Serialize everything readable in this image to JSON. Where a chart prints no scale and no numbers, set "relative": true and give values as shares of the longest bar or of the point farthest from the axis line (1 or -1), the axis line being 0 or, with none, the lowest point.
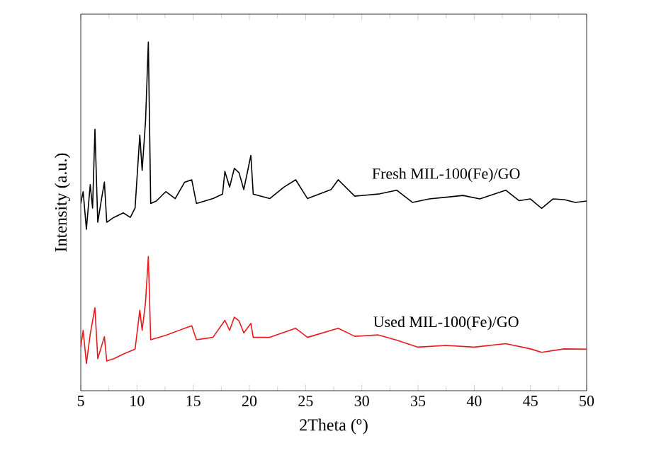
{
  "chart_data": {
    "type": "line",
    "relative": true,
    "xlabel": "2Theta ($^{o}$)",
    "ylabel": "Intensity (a.u.)",
    "xlim": [
      5,
      50
    ],
    "xticks": [
      5,
      10,
      15,
      20,
      25,
      30,
      35,
      40,
      45,
      50
    ],
    "grid": false,
    "legend": false,
    "marker": "none",
    "line_style": "solid",
    "series": [
      {
        "name": "Fresh MIL-100(Fe)/GO",
        "color": "#000000",
        "x": [
          5.0,
          5.21,
          5.5,
          5.84,
          6.05,
          6.26,
          6.51,
          6.85,
          7.1,
          7.31,
          7.94,
          8.78,
          9.41,
          9.83,
          10.25,
          10.46,
          10.76,
          11.01,
          11.22,
          11.72,
          12.56,
          13.4,
          14.24,
          14.87,
          15.29,
          16.76,
          17.61,
          17.82,
          18.24,
          18.66,
          19.08,
          19.5,
          20.13,
          20.34,
          21.81,
          23.07,
          24.12,
          25.17,
          27.27,
          27.9,
          29.37,
          31.47,
          33.1,
          34.5,
          36,
          37.5,
          39,
          40.5,
          42.8,
          44,
          45,
          46,
          47,
          48,
          49,
          50
        ],
        "values": [
          0.537,
          0.571,
          0.463,
          0.591,
          0.524,
          0.75,
          0.483,
          0.551,
          0.598,
          0.483,
          0.497,
          0.51,
          0.497,
          0.524,
          0.733,
          0.632,
          0.773,
          1.0,
          0.537,
          0.544,
          0.571,
          0.551,
          0.598,
          0.605,
          0.537,
          0.551,
          0.564,
          0.629,
          0.584,
          0.638,
          0.625,
          0.577,
          0.675,
          0.564,
          0.551,
          0.584,
          0.605,
          0.551,
          0.577,
          0.605,
          0.558,
          0.564,
          0.575,
          0.54,
          0.55,
          0.555,
          0.56,
          0.55,
          0.575,
          0.545,
          0.55,
          0.523,
          0.55,
          0.548,
          0.54,
          0.544
        ]
      },
      {
        "name": "Used MIL-100(Fe)/GO",
        "color": "#e8191d",
        "x": [
          5.0,
          5.21,
          5.5,
          5.84,
          6.26,
          6.51,
          7.1,
          7.31,
          7.94,
          8.78,
          9.83,
          10.25,
          10.46,
          10.76,
          11.01,
          11.22,
          12.56,
          14.24,
          14.87,
          15.29,
          16.76,
          17.82,
          18.24,
          18.66,
          19.08,
          19.5,
          20.13,
          20.34,
          21.81,
          24.12,
          25.17,
          27.9,
          29.37,
          31.47,
          33.1,
          35,
          37.5,
          40,
          42.8,
          45,
          46,
          48,
          50
        ],
        "values": [
          0.126,
          0.173,
          0.078,
          0.162,
          0.238,
          0.092,
          0.155,
          0.085,
          0.092,
          0.105,
          0.119,
          0.231,
          0.173,
          0.254,
          0.385,
          0.146,
          0.159,
          0.179,
          0.186,
          0.146,
          0.153,
          0.202,
          0.173,
          0.211,
          0.2,
          0.166,
          0.193,
          0.153,
          0.153,
          0.179,
          0.153,
          0.179,
          0.156,
          0.16,
          0.145,
          0.125,
          0.13,
          0.125,
          0.135,
          0.12,
          0.11,
          0.12,
          0.119
        ]
      }
    ]
  }
}
